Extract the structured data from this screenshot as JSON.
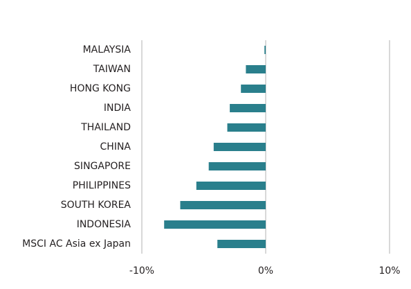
{
  "chart_data": {
    "type": "hbar",
    "categories": [
      "MALAYSIA",
      "TAIWAN",
      "HONG KONG",
      "INDIA",
      "THAILAND",
      "CHINA",
      "SINGAPORE",
      "PHILIPPINES",
      "SOUTH KOREA",
      "INDONESIA",
      "MSCI AC Asia ex Japan"
    ],
    "values": [
      -0.1,
      -1.6,
      -2.0,
      -2.9,
      -3.1,
      -4.2,
      -4.6,
      -5.6,
      -6.9,
      -8.2,
      -3.9
    ],
    "color": "#2a7f8c",
    "xlim": [
      -10,
      10
    ],
    "xticks": [
      {
        "value": -10,
        "label": "-10%"
      },
      {
        "value": 0,
        "label": "0%"
      },
      {
        "value": 10,
        "label": "10%"
      }
    ],
    "grid": true
  }
}
